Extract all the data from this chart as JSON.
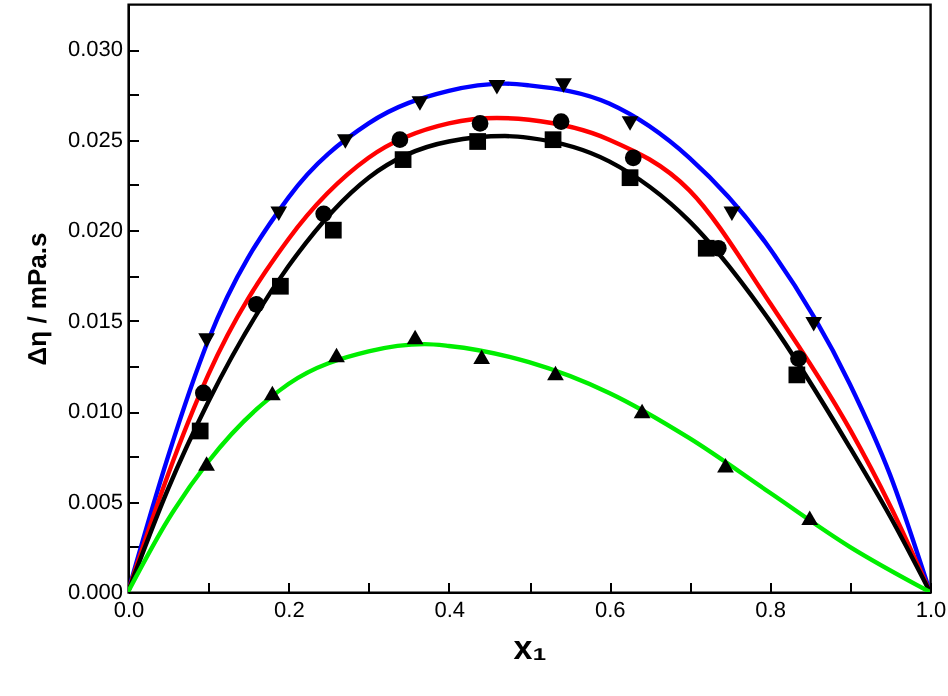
{
  "chart_data": {
    "type": "scatter",
    "xlabel": "x₁",
    "ylabel": "Δη / mPa.s",
    "xlim": [
      0,
      1
    ],
    "ylim": [
      0,
      0.0325
    ],
    "xticks": [
      {
        "value": 0,
        "label": "0.0"
      },
      {
        "value": 0.1,
        "label": null
      },
      {
        "value": 0.2,
        "label": "0.2"
      },
      {
        "value": 0.3,
        "label": null
      },
      {
        "value": 0.4,
        "label": "0.4"
      },
      {
        "value": 0.5,
        "label": null
      },
      {
        "value": 0.6,
        "label": "0.6"
      },
      {
        "value": 0.7,
        "label": null
      },
      {
        "value": 0.8,
        "label": "0.8"
      },
      {
        "value": 0.9,
        "label": null
      },
      {
        "value": 1,
        "label": "1.0"
      }
    ],
    "yticks": [
      {
        "value": 0,
        "label": "0.000"
      },
      {
        "value": 0.0025,
        "label": null
      },
      {
        "value": 0.005,
        "label": "0.005"
      },
      {
        "value": 0.0075,
        "label": null
      },
      {
        "value": 0.01,
        "label": "0.010"
      },
      {
        "value": 0.0125,
        "label": null
      },
      {
        "value": 0.015,
        "label": "0.015"
      },
      {
        "value": 0.0175,
        "label": null
      },
      {
        "value": 0.02,
        "label": "0.020"
      },
      {
        "value": 0.0225,
        "label": null
      },
      {
        "value": 0.025,
        "label": "0.025"
      },
      {
        "value": 0.0275,
        "label": null
      },
      {
        "value": 0.03,
        "label": "0.030"
      }
    ],
    "grid": false,
    "series": [
      {
        "type": "line",
        "color": "#0000ff",
        "line_style": "solid",
        "x": [
          0,
          0.05,
          0.1,
          0.2,
          0.3,
          0.4,
          0.47,
          0.5,
          0.6,
          0.7,
          0.8,
          0.9,
          0.95,
          1
        ],
        "values": [
          0,
          0.0075,
          0.0139,
          0.0218,
          0.0259,
          0.0277,
          0.0281,
          0.028,
          0.027,
          0.024,
          0.019,
          0.0115,
          0.0065,
          0
        ]
      },
      {
        "type": "line",
        "color": "#ff0000",
        "line_style": "solid",
        "x": [
          0,
          0.05,
          0.1,
          0.2,
          0.3,
          0.4,
          0.46,
          0.5,
          0.6,
          0.7,
          0.8,
          0.9,
          0.95,
          1
        ],
        "values": [
          0,
          0.0065,
          0.012,
          0.0195,
          0.024,
          0.0259,
          0.0262,
          0.0261,
          0.025,
          0.0222,
          0.016,
          0.009,
          0.0048,
          0
        ]
      },
      {
        "type": "line",
        "color": "#000000",
        "line_style": "solid",
        "x": [
          0,
          0.05,
          0.1,
          0.2,
          0.3,
          0.4,
          0.47,
          0.5,
          0.6,
          0.7,
          0.8,
          0.9,
          0.95,
          1
        ],
        "values": [
          0,
          0.0057,
          0.0105,
          0.018,
          0.0229,
          0.0249,
          0.0252,
          0.0251,
          0.0238,
          0.0205,
          0.015,
          0.008,
          0.0042,
          0
        ]
      },
      {
        "type": "line",
        "color": "#00ee00",
        "line_style": "solid",
        "x": [
          0,
          0.05,
          0.1,
          0.2,
          0.3,
          0.37,
          0.4,
          0.5,
          0.6,
          0.7,
          0.8,
          0.9,
          1
        ],
        "values": [
          0,
          0.004,
          0.0072,
          0.0115,
          0.0133,
          0.0137,
          0.0136,
          0.0127,
          0.011,
          0.0085,
          0.0055,
          0.0025,
          0
        ]
      },
      {
        "type": "scatter",
        "color": "#000000",
        "marker": "square",
        "x": [
          0.09,
          0.19,
          0.256,
          0.343,
          0.436,
          0.53,
          0.626,
          0.721,
          0.834
        ],
        "values": [
          0.0089,
          0.0169,
          0.02,
          0.0239,
          0.0249,
          0.025,
          0.0229,
          0.019,
          0.012
        ]
      },
      {
        "type": "scatter",
        "color": "#000000",
        "marker": "circle",
        "x": [
          0.094,
          0.16,
          0.244,
          0.339,
          0.439,
          0.54,
          0.63,
          0.736,
          0.836
        ],
        "values": [
          0.011,
          0.0159,
          0.0209,
          0.025,
          0.0259,
          0.026,
          0.024,
          0.019,
          0.0129
        ]
      },
      {
        "type": "scatter",
        "color": "#000000",
        "marker": "triangle",
        "x": [
          0.098,
          0.18,
          0.26,
          0.358,
          0.441,
          0.533,
          0.641,
          0.745,
          0.85
        ],
        "values": [
          0.0071,
          0.011,
          0.0131,
          0.0141,
          0.013,
          0.0121,
          0.01,
          0.007,
          0.0041
        ]
      },
      {
        "type": "scatter",
        "color": "#000000",
        "marker": "triangle-down",
        "x": [
          0.098,
          0.188,
          0.271,
          0.364,
          0.46,
          0.543,
          0.626,
          0.753,
          0.855
        ],
        "values": [
          0.0139,
          0.0209,
          0.0249,
          0.027,
          0.0279,
          0.028,
          0.0259,
          0.0209,
          0.0148
        ]
      }
    ]
  }
}
